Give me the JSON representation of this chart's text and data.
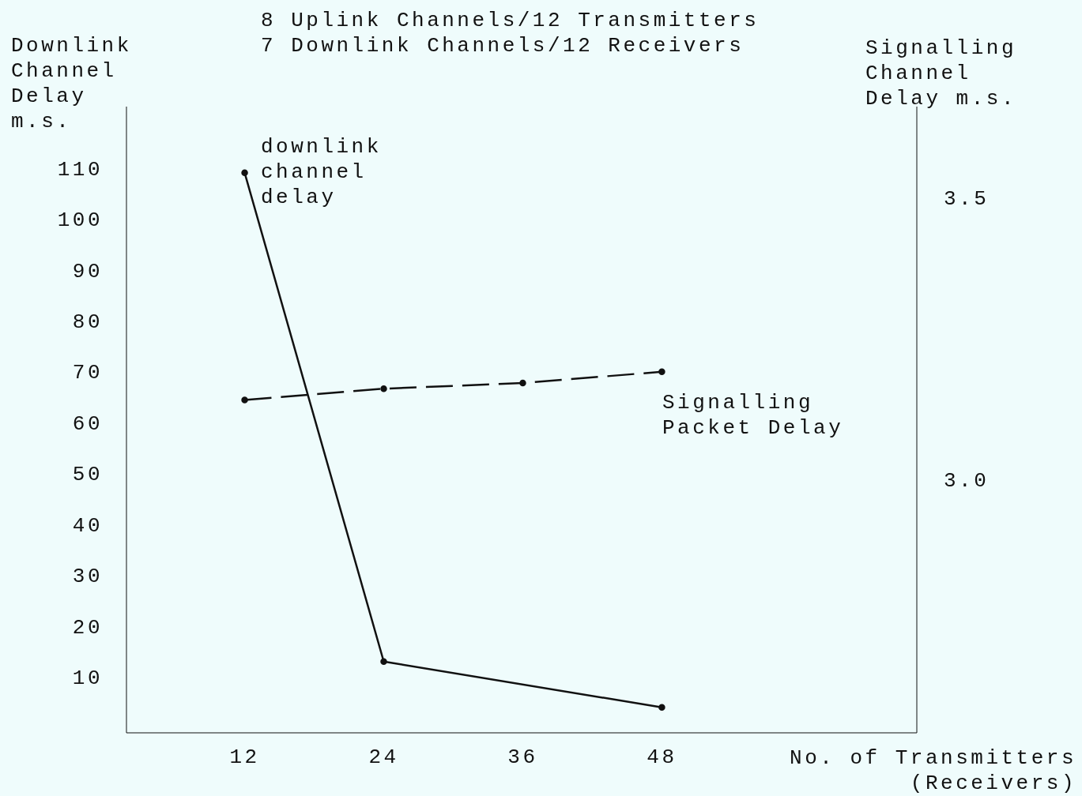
{
  "chart_data": {
    "type": "line",
    "title": "8 Uplink Channels/12 Transmitters",
    "subtitle": "7 Downlink Channels/12 Receivers",
    "xlabel": "No. of Transmitters (Receivers)",
    "ylabel": "Downlink Channel Delay m.s.",
    "y2label": "Signalling Channel Delay m.s.",
    "annotations": [
      "downlink channel delay",
      "Signalling Packet Delay"
    ],
    "xlim": [
      1.8,
      70
    ],
    "xticks": [
      12,
      24,
      36,
      48
    ],
    "ylim": [
      -1,
      122
    ],
    "yticks": [
      10,
      20,
      30,
      40,
      50,
      60,
      70,
      80,
      90,
      100,
      110
    ],
    "y2lim": [
      2.55,
      3.66
    ],
    "y2ticks": [
      {
        "value": 3,
        "label": "3.0"
      },
      3.5
    ],
    "marker": "circle",
    "series": [
      {
        "color": "#111111",
        "line_style": "solid",
        "x": [
          12,
          24,
          48
        ],
        "values": [
          109,
          13,
          4
        ]
      },
      {
        "color": "#111111",
        "line_style": "dashed",
        "axis": "y2",
        "x": [
          12,
          24,
          36,
          48
        ],
        "values": [
          3.14,
          3.16,
          3.17,
          3.19
        ]
      }
    ]
  }
}
